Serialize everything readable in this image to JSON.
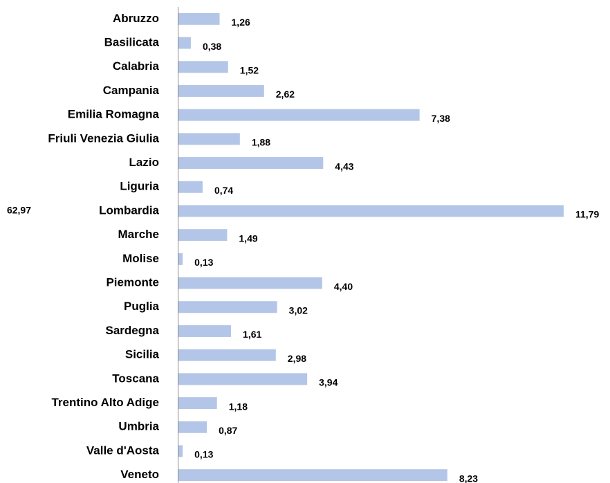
{
  "chart_data": {
    "type": "bar",
    "orientation": "horizontal",
    "color": "#b4c6e7",
    "categories": [
      "Abruzzo",
      "Basilicata",
      "Calabria",
      "Campania",
      "Emilia Romagna",
      "Friuli Venezia Giulia",
      "Lazio",
      "Liguria",
      "Lombardia",
      "Marche",
      "Molise",
      "Piemonte",
      "Puglia",
      "Sardegna",
      "Sicilia",
      "Toscana",
      "Trentino Alto Adige",
      "Umbria",
      "Valle d'Aosta",
      "Veneto"
    ],
    "values": [
      1.26,
      0.38,
      1.52,
      2.62,
      7.38,
      1.88,
      4.43,
      0.74,
      11.79,
      1.49,
      0.13,
      4.4,
      3.02,
      1.61,
      2.98,
      3.94,
      1.18,
      0.87,
      0.13,
      8.23
    ],
    "value_labels": [
      "1,26",
      "0,38",
      "1,52",
      "2,62",
      "7,38",
      "1,88",
      "4,43",
      "0,74",
      "11,79",
      "1,49",
      "0,13",
      "4,40",
      "3,02",
      "1,61",
      "2,98",
      "3,94",
      "1,18",
      "0,87",
      "0,13",
      "8,23"
    ],
    "annotation": "62,97"
  }
}
